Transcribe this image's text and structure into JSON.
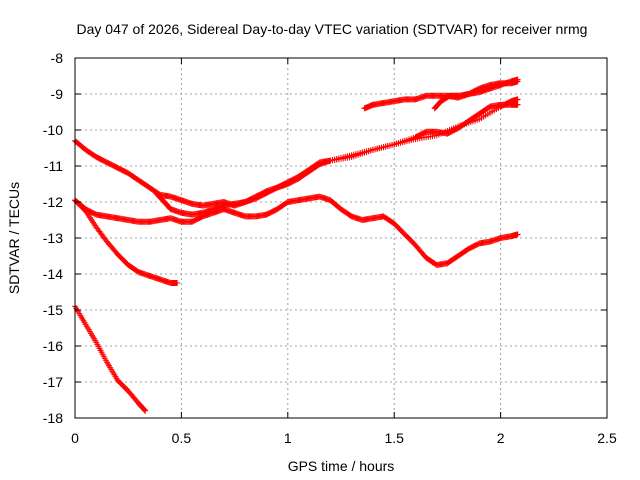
{
  "chart_data": {
    "type": "scatter",
    "title": "Day 047 of 2026, Sidereal Day-to-day VTEC variation (SDTVAR) for receiver nrmg",
    "xlabel": "GPS time / hours",
    "ylabel": "SDTVAR / TECUs",
    "xlim": [
      0,
      2.5
    ],
    "ylim": [
      -18,
      -8
    ],
    "xticks": [
      0,
      0.5,
      1,
      1.5,
      2,
      2.5
    ],
    "xtick_labels": [
      "0",
      "0.5",
      "1",
      "1.5",
      "2",
      "2.5"
    ],
    "yticks": [
      -18,
      -17,
      -16,
      -15,
      -14,
      -13,
      -12,
      -11,
      -10,
      -9,
      -8
    ],
    "ytick_labels": [
      "-18",
      "-17",
      "-16",
      "-15",
      "-14",
      "-13",
      "-12",
      "-11",
      "-10",
      "-9",
      "-8"
    ],
    "grid": true,
    "marker": "plus",
    "series_color": "#ff0000",
    "series": [
      {
        "x": [
          0.0,
          0.05,
          0.1,
          0.15,
          0.2,
          0.25,
          0.3,
          0.35,
          0.4,
          0.45,
          0.5,
          0.55,
          0.6,
          0.65,
          0.7,
          0.75,
          0.8,
          0.85,
          0.9,
          0.95,
          1.0,
          1.05,
          1.1,
          1.15,
          1.2,
          1.3,
          1.4,
          1.5,
          1.6,
          1.7,
          1.8,
          1.9,
          2.0,
          2.05,
          2.08
        ],
        "y": [
          -10.3,
          -10.55,
          -10.75,
          -10.9,
          -11.05,
          -11.2,
          -11.4,
          -11.6,
          -11.8,
          -11.85,
          -11.95,
          -12.05,
          -12.1,
          -12.05,
          -12.0,
          -12.1,
          -12.0,
          -11.85,
          -11.7,
          -11.6,
          -11.45,
          -11.3,
          -11.1,
          -10.9,
          -10.85,
          -10.7,
          -10.55,
          -10.4,
          -10.25,
          -10.15,
          -9.9,
          -9.7,
          -9.35,
          -9.2,
          -9.15
        ]
      },
      {
        "x": [
          0.38,
          0.42,
          0.45,
          0.5,
          0.55,
          0.6,
          0.65,
          0.7,
          0.75,
          0.8,
          0.85,
          0.9,
          0.95,
          1.0,
          1.05,
          1.1,
          1.15,
          1.2,
          1.3,
          1.4,
          1.5,
          1.6,
          1.65,
          1.7,
          1.75,
          1.8,
          1.85,
          1.9,
          1.95,
          2.0,
          2.05,
          2.08
        ],
        "y": [
          -11.75,
          -12.0,
          -12.2,
          -12.3,
          -12.35,
          -12.3,
          -12.2,
          -12.1,
          -12.05,
          -12.0,
          -11.9,
          -11.75,
          -11.6,
          -11.5,
          -11.35,
          -11.15,
          -10.95,
          -10.85,
          -10.75,
          -10.55,
          -10.4,
          -10.2,
          -10.05,
          -10.05,
          -10.1,
          -9.95,
          -9.75,
          -9.55,
          -9.35,
          -9.3,
          -9.3,
          -9.3
        ]
      },
      {
        "x": [
          0.0,
          0.05,
          0.1,
          0.15,
          0.2,
          0.25,
          0.3,
          0.35,
          0.4,
          0.45,
          0.5,
          0.55,
          0.6,
          0.65,
          0.7,
          0.75,
          0.8,
          0.85,
          0.9,
          0.95,
          1.0,
          1.05,
          1.1,
          1.15,
          1.2,
          1.25,
          1.3,
          1.35,
          1.4,
          1.45,
          1.5,
          1.55,
          1.6,
          1.65,
          1.7,
          1.75,
          1.8,
          1.85,
          1.9,
          1.95,
          2.0,
          2.05,
          2.08
        ],
        "y": [
          -11.95,
          -12.2,
          -12.35,
          -12.4,
          -12.45,
          -12.5,
          -12.55,
          -12.55,
          -12.5,
          -12.45,
          -12.55,
          -12.55,
          -12.4,
          -12.3,
          -12.2,
          -12.3,
          -12.4,
          -12.4,
          -12.35,
          -12.2,
          -12.0,
          -11.95,
          -11.9,
          -11.85,
          -11.95,
          -12.2,
          -12.4,
          -12.5,
          -12.45,
          -12.4,
          -12.6,
          -12.9,
          -13.2,
          -13.55,
          -13.75,
          -13.7,
          -13.5,
          -13.3,
          -13.15,
          -13.1,
          -13.0,
          -12.95,
          -12.9
        ]
      },
      {
        "x": [
          0.0,
          0.05,
          0.1,
          0.15,
          0.2,
          0.25,
          0.3,
          0.35,
          0.4,
          0.45,
          0.48
        ],
        "y": [
          -11.95,
          -12.25,
          -12.7,
          -13.1,
          -13.45,
          -13.75,
          -13.95,
          -14.05,
          -14.15,
          -14.25,
          -14.25
        ]
      },
      {
        "x": [
          0.0,
          0.05,
          0.1,
          0.15,
          0.2,
          0.25,
          0.3,
          0.33
        ],
        "y": [
          -14.9,
          -15.4,
          -15.9,
          -16.45,
          -16.95,
          -17.25,
          -17.6,
          -17.8
        ]
      },
      {
        "x": [
          1.36,
          1.4,
          1.45,
          1.5,
          1.55,
          1.6,
          1.65,
          1.7,
          1.75,
          1.8,
          1.85,
          1.9,
          1.95,
          2.0,
          2.05,
          2.08
        ],
        "y": [
          -9.4,
          -9.3,
          -9.25,
          -9.2,
          -9.15,
          -9.15,
          -9.05,
          -9.05,
          -9.05,
          -9.1,
          -9.0,
          -8.85,
          -8.75,
          -8.7,
          -8.7,
          -8.65
        ]
      },
      {
        "x": [
          1.69,
          1.72,
          1.76,
          1.8,
          1.85,
          1.9,
          1.95,
          2.0,
          2.05,
          2.08
        ],
        "y": [
          -9.4,
          -9.2,
          -9.05,
          -9.05,
          -9.0,
          -8.95,
          -8.85,
          -8.75,
          -8.65,
          -8.6
        ]
      }
    ]
  }
}
